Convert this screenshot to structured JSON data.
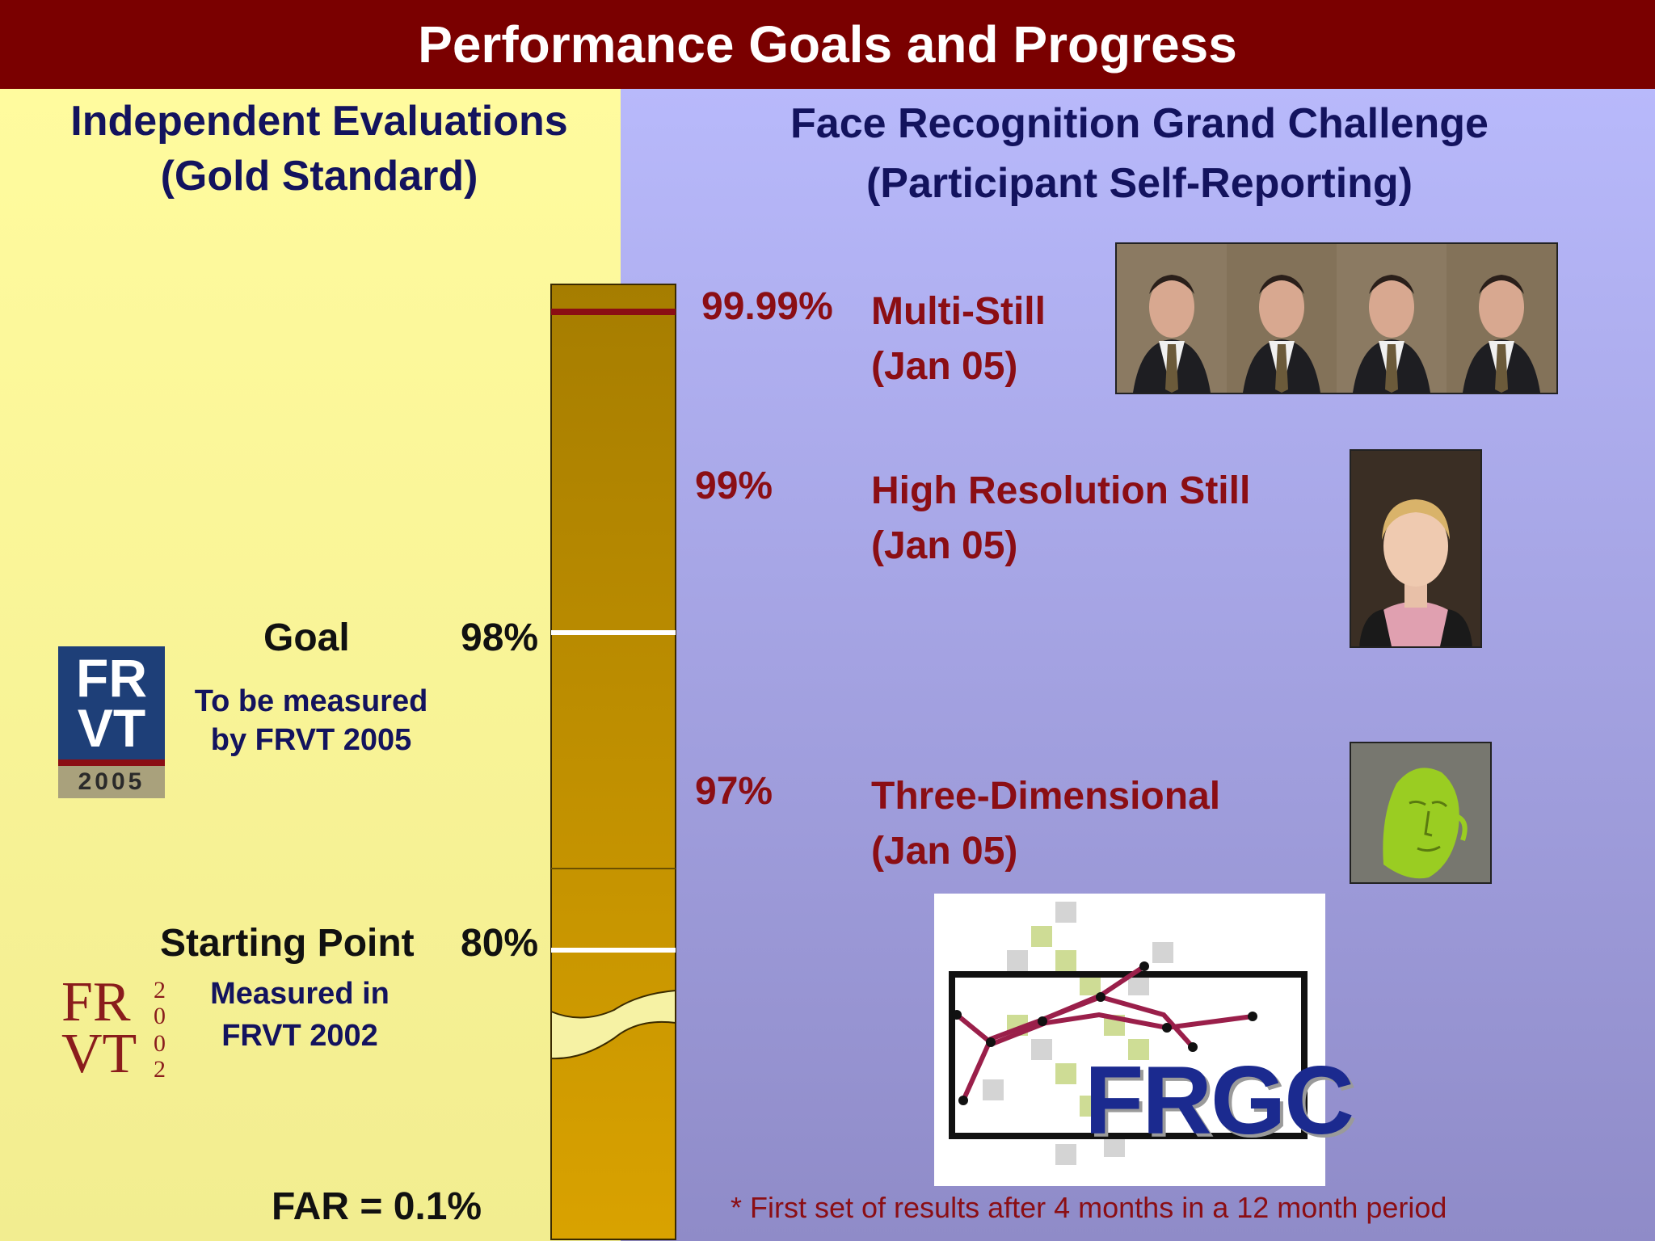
{
  "title": "Performance Goals and Progress",
  "left": {
    "heading_line1": "Independent Evaluations",
    "heading_line2": "(Gold Standard)",
    "goal_label": "Goal",
    "goal_value": "98%",
    "goal_note_line1": "To be measured",
    "goal_note_line2": "by FRVT 2005",
    "start_label": "Starting Point",
    "start_value": "80%",
    "start_note_line1": "Measured in",
    "start_note_line2": "FRVT 2002",
    "far": "FAR = 0.1%"
  },
  "logos": {
    "frvt2005_line1": "FR",
    "frvt2005_line2": "VT",
    "frvt2005_year": "2005",
    "frvt2002_line1": "FR",
    "frvt2002_line2": "VT",
    "frvt2002_year_top": "20",
    "frvt2002_year_bottom": "02",
    "frgc": "FRGC"
  },
  "right": {
    "heading_line1": "Face Recognition Grand Challenge",
    "heading_line2": "(Participant Self-Reporting)",
    "results": [
      {
        "value": "99.99%",
        "name": "Multi-Still",
        "date": "(Jan 05)"
      },
      {
        "value": "99%",
        "name": "High Resolution Still",
        "date": "(Jan 05)"
      },
      {
        "value": "97%",
        "name": "Three-Dimensional",
        "date": "(Jan 05)"
      }
    ],
    "footnote": "* First set of results after 4 months in a 12 month period"
  },
  "colors": {
    "title_bar": "#7a0000",
    "left_bg": "#fffb9e",
    "right_bg": "#b8b9fb",
    "bar_fill": "#c99a0a",
    "text_navy": "#13135e",
    "text_maroon": "#8b0e14"
  },
  "icons": [
    "face-photo-icon",
    "3d-face-scan-icon",
    "frvt-2005-logo-icon",
    "frvt-2002-logo-icon",
    "frgc-logo-icon"
  ]
}
